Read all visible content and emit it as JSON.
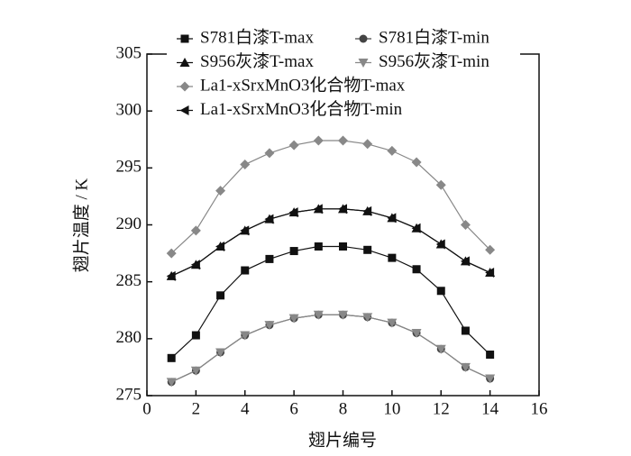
{
  "chart_data": {
    "type": "line",
    "x_label": "翅片编号",
    "y_label": "翅片温度 / K",
    "x": [
      1,
      2,
      3,
      4,
      5,
      6,
      7,
      8,
      9,
      10,
      11,
      12,
      13,
      14
    ],
    "series": [
      {
        "name": "S781白漆T-max",
        "color": "#111111",
        "marker": "square",
        "values": [
          278.3,
          280.3,
          283.8,
          286.0,
          287.0,
          287.7,
          288.1,
          288.1,
          287.8,
          287.1,
          286.1,
          284.2,
          280.7,
          278.6
        ]
      },
      {
        "name": "S781白漆T-min",
        "color": "#444444",
        "marker": "circle",
        "values": [
          276.2,
          277.2,
          278.8,
          280.3,
          281.2,
          281.8,
          282.1,
          282.1,
          281.9,
          281.4,
          280.5,
          279.1,
          277.5,
          276.5
        ]
      },
      {
        "name": "S956灰漆T-max",
        "color": "#111111",
        "marker": "triangle-up",
        "values": [
          285.5,
          286.5,
          288.1,
          289.5,
          290.5,
          291.1,
          291.4,
          291.4,
          291.2,
          290.6,
          289.7,
          288.3,
          286.8,
          285.8
        ]
      },
      {
        "name": "S956灰漆T-min",
        "color": "#888888",
        "marker": "triangle-down",
        "values": [
          276.2,
          277.2,
          278.8,
          280.3,
          281.2,
          281.8,
          282.1,
          282.1,
          281.9,
          281.4,
          280.5,
          279.1,
          277.5,
          276.5
        ]
      },
      {
        "name": "La1-xSrxMnO3化合物T-max",
        "color": "#888888",
        "marker": "diamond",
        "values": [
          287.5,
          289.5,
          293.0,
          295.3,
          296.3,
          297.0,
          297.4,
          297.4,
          297.1,
          296.5,
          295.5,
          293.5,
          290.0,
          287.8
        ]
      },
      {
        "name": "La1-xSrxMnO3化合物T-min",
        "color": "#111111",
        "marker": "triangle-left",
        "values": [
          285.5,
          286.5,
          288.1,
          289.5,
          290.5,
          291.1,
          291.4,
          291.4,
          291.2,
          290.6,
          289.7,
          288.3,
          286.8,
          285.8
        ]
      }
    ],
    "xlim": [
      0,
      16
    ],
    "xticks": [
      0,
      2,
      4,
      6,
      8,
      10,
      12,
      14,
      16
    ],
    "ylim": [
      275,
      305
    ],
    "yticks": [
      275,
      280,
      285,
      290,
      295,
      300,
      305
    ],
    "grid": false,
    "legend": "top"
  }
}
